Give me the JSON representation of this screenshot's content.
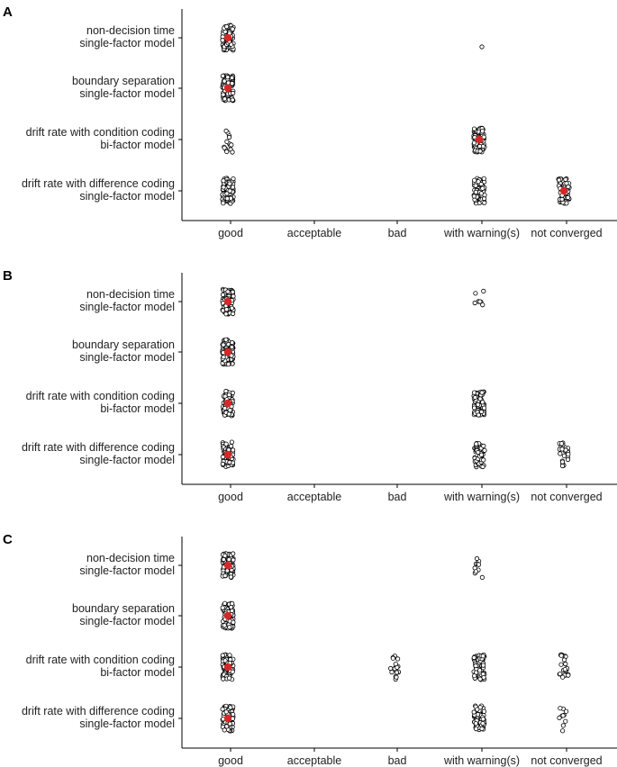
{
  "chart_data": [
    {
      "type": "scatter",
      "panel_label": "A",
      "x_categories": [
        "good",
        "acceptable",
        "bad",
        "with warning(s)",
        "not converged"
      ],
      "y_categories": [
        [
          "non-decision time",
          "single-factor model"
        ],
        [
          "boundary separation",
          "single-factor model"
        ],
        [
          "drift rate with condition coding",
          "bi-factor model"
        ],
        [
          "drift rate with difference coding",
          "single-factor model"
        ]
      ],
      "points_per_cell": [
        [
          100,
          0,
          0,
          1,
          0
        ],
        [
          100,
          0,
          0,
          0,
          0
        ],
        [
          14,
          0,
          0,
          86,
          0
        ],
        [
          100,
          0,
          0,
          75,
          60
        ]
      ],
      "mean_marker_cells": [
        [
          0,
          0
        ],
        [
          1,
          0
        ],
        [
          2,
          3
        ],
        [
          3,
          4
        ]
      ],
      "grid": false
    },
    {
      "type": "scatter",
      "panel_label": "B",
      "x_categories": [
        "good",
        "acceptable",
        "bad",
        "with warning(s)",
        "not converged"
      ],
      "y_categories": [
        [
          "non-decision time",
          "single-factor model"
        ],
        [
          "boundary separation",
          "single-factor model"
        ],
        [
          "drift rate with condition coding",
          "bi-factor model"
        ],
        [
          "drift rate with difference coding",
          "single-factor model"
        ]
      ],
      "points_per_cell": [
        [
          100,
          0,
          0,
          7,
          0
        ],
        [
          100,
          0,
          0,
          0,
          0
        ],
        [
          80,
          0,
          0,
          80,
          0
        ],
        [
          80,
          0,
          0,
          60,
          25
        ]
      ],
      "mean_marker_cells": [
        [
          0,
          0
        ],
        [
          1,
          0
        ],
        [
          2,
          0
        ],
        [
          3,
          0
        ]
      ],
      "grid": false
    },
    {
      "type": "scatter",
      "panel_label": "C",
      "x_categories": [
        "good",
        "acceptable",
        "bad",
        "with warning(s)",
        "not converged"
      ],
      "y_categories": [
        [
          "non-decision time",
          "single-factor model"
        ],
        [
          "boundary separation",
          "single-factor model"
        ],
        [
          "drift rate with condition coding",
          "bi-factor model"
        ],
        [
          "drift rate with difference coding",
          "single-factor model"
        ]
      ],
      "points_per_cell": [
        [
          100,
          0,
          0,
          11,
          0
        ],
        [
          100,
          0,
          0,
          0,
          0
        ],
        [
          80,
          0,
          18,
          80,
          22
        ],
        [
          85,
          0,
          0,
          60,
          10
        ]
      ],
      "mean_marker_cells": [
        [
          0,
          0
        ],
        [
          1,
          0
        ],
        [
          2,
          0
        ],
        [
          3,
          0
        ]
      ],
      "grid": false
    }
  ],
  "colors": {
    "mean_marker": "#d62828",
    "point_fill": "#ffffff",
    "point_stroke": "#000000"
  }
}
